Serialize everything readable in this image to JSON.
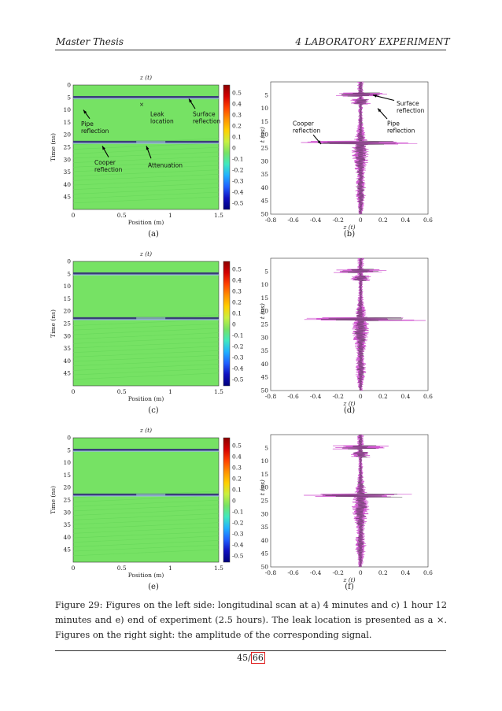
{
  "header": {
    "left": "Master Thesis",
    "right": "4   LABORATORY EXPERIMENT"
  },
  "panels_left": {
    "title": "z (t)",
    "xlabel": "Position (m)",
    "ylabel": "Time (ns)",
    "xticks": [
      "0",
      "0.5",
      "1",
      "1.5"
    ],
    "yticks": [
      "0",
      "5",
      "10",
      "15",
      "20",
      "25",
      "30",
      "35",
      "40",
      "45"
    ],
    "colorbar_ticks": [
      "0.5",
      "0.4",
      "0.3",
      "0.2",
      "0.1",
      "0",
      "-0.1",
      "-0.2",
      "-0.3",
      "-0.4",
      "-0.5"
    ],
    "reflection_times_ns": [
      4.8,
      22.8
    ],
    "leak_position_m": 0.8,
    "colors": {
      "background": "#76e264",
      "band": "#3a3f78",
      "band_light": "#a8b8ff"
    }
  },
  "panels_right": {
    "xlabel": "z (t)",
    "ylabel": "t (ns)",
    "xticks": [
      "-0.8",
      "-0.6",
      "-0.4",
      "-0.2",
      "0",
      "0.2",
      "0.4",
      "0.6"
    ],
    "yticks": [
      "5",
      "10",
      "15",
      "20",
      "25",
      "30",
      "35",
      "40",
      "45",
      "50"
    ],
    "colors": {
      "signal": "#cc44cc",
      "signal_dark": "#333333"
    }
  },
  "annotations_a": {
    "pipe": "Pipe\nreflection",
    "leak": "Leak\nlocation",
    "surface": "Surface\nreflection",
    "cooper": "Cooper\nreflection",
    "attenuation": "Attenuation",
    "leak_marker": "×"
  },
  "annotations_b": {
    "surface": "Surface\nreflection",
    "cooper": "Cooper\nreflection",
    "pipe": "Pipe\nreflection"
  },
  "sublabels": [
    "(a)",
    "(b)",
    "(c)",
    "(d)",
    "(e)",
    "(f)"
  ],
  "caption": "Figure 29: Figures on the left side: longitudinal scan at a) 4 minutes and c) 1 hour 12 minutes and e) end of experiment (2.5 hours). The leak location is presented as a ×. Figures on the right sight: the amplitude of the corresponding signal.",
  "page": {
    "current": "45",
    "separator": "/",
    "total": "66"
  }
}
